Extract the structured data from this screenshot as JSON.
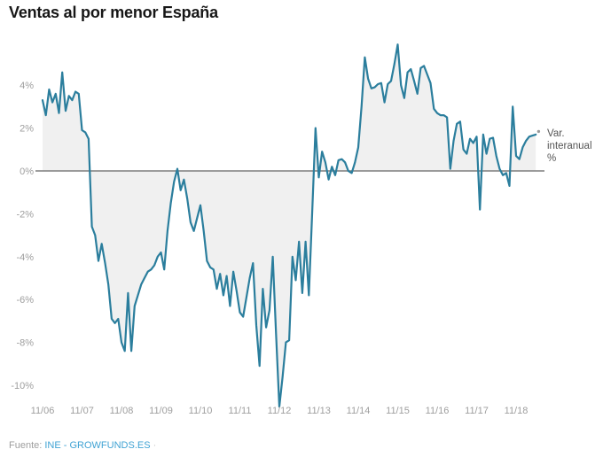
{
  "title": "Ventas al por menor España",
  "annotation": {
    "lines": [
      "Var.",
      "interanual",
      "%"
    ]
  },
  "footer": {
    "prefix": "Fuente:",
    "source": "INE - GROWFUNDS.ES",
    "suffix": "·"
  },
  "colors": {
    "line": "#2b7e9d",
    "area_fill": "#f0f0f0",
    "zero_line": "#7d7d7d",
    "axis_text": "#9e9e9e",
    "annotation_text": "#555555",
    "title_text": "#171717",
    "footer_text": "#9e9e9e",
    "link": "#41a3d4",
    "end_dot": "#9a9a9a"
  },
  "chart_data": {
    "type": "line",
    "title": "Ventas al por menor España",
    "series_name": "Var. interanual %",
    "ylabel": "Var. interanual %",
    "xlabel": "",
    "x_labels": [
      "11/06",
      "11/07",
      "11/08",
      "11/09",
      "11/10",
      "11/11",
      "11/12",
      "11/13",
      "11/14",
      "11/15",
      "11/16",
      "11/17",
      "11/18"
    ],
    "x_label_every_n_points": 12,
    "y_ticks": [
      {
        "label": "4%",
        "value": 4
      },
      {
        "label": "2%",
        "value": 2
      },
      {
        "label": "0%",
        "value": 0
      },
      {
        "label": "-2%",
        "value": -2
      },
      {
        "label": "-4%",
        "value": -4
      },
      {
        "label": "-6%",
        "value": -6
      },
      {
        "label": "-8%",
        "value": -8
      },
      {
        "label": "-10%",
        "value": -10
      }
    ],
    "ylim": [
      -11.5,
      6.5
    ],
    "grid": false,
    "area_fill_to_zero": true,
    "zero_baseline": true,
    "values": [
      3.3,
      2.6,
      3.8,
      3.2,
      3.6,
      2.7,
      4.6,
      2.8,
      3.5,
      3.3,
      3.7,
      3.6,
      1.9,
      1.8,
      1.5,
      -2.6,
      -3.0,
      -4.2,
      -3.4,
      -4.3,
      -5.3,
      -6.9,
      -7.1,
      -6.9,
      -8.0,
      -8.4,
      -5.7,
      -8.4,
      -6.3,
      -5.8,
      -5.3,
      -5.0,
      -4.7,
      -4.6,
      -4.4,
      -4.0,
      -3.8,
      -4.6,
      -2.8,
      -1.5,
      -0.5,
      0.1,
      -0.9,
      -0.4,
      -1.3,
      -2.4,
      -2.8,
      -2.2,
      -1.6,
      -2.8,
      -4.2,
      -4.5,
      -4.6,
      -5.5,
      -4.8,
      -5.8,
      -4.9,
      -6.3,
      -4.7,
      -5.6,
      -6.6,
      -6.8,
      -5.9,
      -5.0,
      -4.3,
      -7.2,
      -9.1,
      -5.5,
      -7.3,
      -6.5,
      -4.0,
      -7.6,
      -11.0,
      -9.6,
      -8.0,
      -7.9,
      -4.0,
      -5.1,
      -3.3,
      -5.7,
      -3.3,
      -5.8,
      -1.9,
      2.0,
      -0.3,
      0.9,
      0.4,
      -0.4,
      0.2,
      -0.2,
      0.5,
      0.55,
      0.4,
      0.0,
      -0.1,
      0.4,
      1.1,
      3.0,
      5.3,
      4.3,
      3.85,
      3.9,
      4.05,
      4.1,
      3.2,
      4.05,
      4.2,
      5.0,
      5.9,
      4.0,
      3.4,
      4.6,
      4.75,
      4.2,
      3.6,
      4.8,
      4.9,
      4.5,
      4.1,
      2.9,
      2.7,
      2.6,
      2.6,
      2.5,
      0.1,
      1.4,
      2.2,
      2.3,
      1.0,
      0.8,
      1.5,
      1.3,
      1.6,
      -1.8,
      1.7,
      0.8,
      1.5,
      1.55,
      0.7,
      0.1,
      -0.2,
      -0.1,
      -0.7,
      3.0,
      0.7,
      0.55,
      1.1,
      1.4,
      1.6,
      1.65,
      1.7
    ]
  }
}
